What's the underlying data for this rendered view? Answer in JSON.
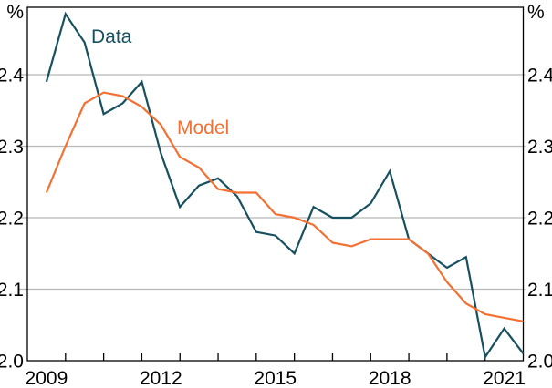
{
  "chart": {
    "unit": "%"
  },
  "chart_data": {
    "type": "line",
    "title": "",
    "xlabel": "",
    "ylabel": "%",
    "unit_left": "%",
    "unit_right": "%",
    "grid": "horizontal",
    "legend_position": "inline-annotations",
    "xlim": [
      2009,
      2022
    ],
    "ylim": [
      2.0,
      2.494
    ],
    "xtick_labels": [
      "2009",
      "2012",
      "2015",
      "2018",
      "2021"
    ],
    "xtick_label_years": [
      2009,
      2012,
      2015,
      2018,
      2021
    ],
    "x_minor_ticks": [
      2010,
      2011,
      2012,
      2013,
      2014,
      2015,
      2016,
      2017,
      2018,
      2019,
      2020,
      2021
    ],
    "ytick_labels": [
      "2.0",
      "2.1",
      "2.2",
      "2.3",
      "2.4"
    ],
    "ytick_values": [
      2.0,
      2.1,
      2.2,
      2.3,
      2.4
    ],
    "x": [
      2009.5,
      2010,
      2010.5,
      2011,
      2011.5,
      2012,
      2012.5,
      2013,
      2013.5,
      2014,
      2014.5,
      2015,
      2015.5,
      2016,
      2016.5,
      2017,
      2017.5,
      2018,
      2018.5,
      2019,
      2019.5,
      2020,
      2020.5,
      2021,
      2021.5,
      2022
    ],
    "series": [
      {
        "name": "Data",
        "color": "#17505E",
        "values": [
          2.39,
          2.485,
          2.445,
          2.345,
          2.36,
          2.39,
          2.29,
          2.215,
          2.245,
          2.255,
          2.23,
          2.18,
          2.175,
          2.15,
          2.215,
          2.2,
          2.2,
          2.22,
          2.265,
          2.17,
          2.15,
          2.13,
          2.145,
          2.005,
          2.045,
          2.01
        ]
      },
      {
        "name": "Model",
        "color": "#F37032",
        "values": [
          2.235,
          2.3,
          2.36,
          2.375,
          2.37,
          2.355,
          2.33,
          2.285,
          2.27,
          2.24,
          2.235,
          2.235,
          2.205,
          2.2,
          2.19,
          2.165,
          2.16,
          2.17,
          2.17,
          2.17,
          2.15,
          2.11,
          2.08,
          2.065,
          2.06,
          2.055
        ]
      }
    ],
    "annotations": [
      {
        "text": "Data",
        "series": "Data"
      },
      {
        "text": "Model",
        "series": "Model"
      }
    ],
    "colors": {
      "data_series": "#17505E",
      "model_series": "#F37032",
      "gridline": "#b8b8b8",
      "frame": "#000000",
      "label_text": "#000000"
    }
  }
}
